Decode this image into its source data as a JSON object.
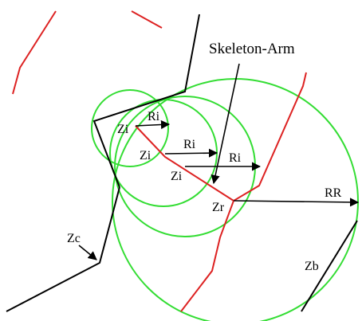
{
  "diagram": {
    "labels": {
      "skeleton_arm": "Skeleton-Arm",
      "zi_1": "Zi",
      "zi_2": "Zi",
      "zi_3": "Zi",
      "ri_1": "Ri",
      "ri_2": "Ri",
      "ri_3": "Ri",
      "zr": "Zr",
      "rr": "RR",
      "zc": "Zc",
      "zb": "Zb"
    },
    "colors": {
      "circle": "#33dd33",
      "skeleton": "#dd2222",
      "boundary": "#000000",
      "arrow": "#000000"
    }
  }
}
